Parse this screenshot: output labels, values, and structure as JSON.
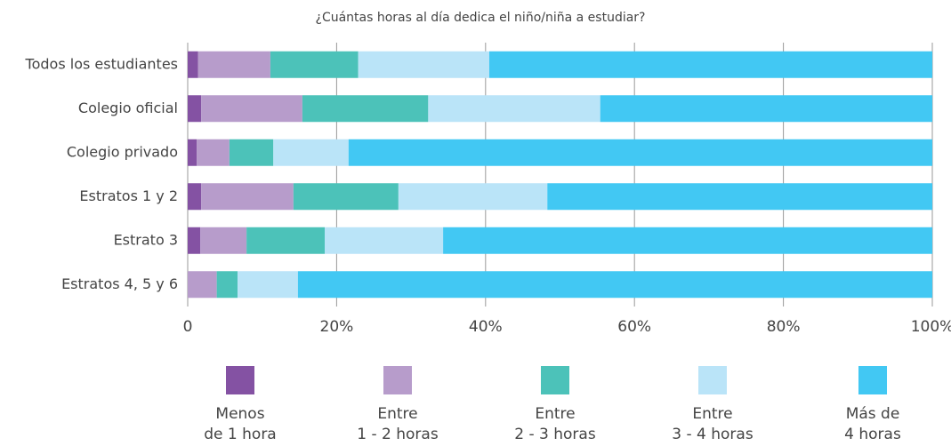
{
  "chart_data": {
    "type": "stacked_barh",
    "title": "¿Cuántas horas al día dedica el niño/niña a estudiar?",
    "categories": [
      "Todos los estudiantes",
      "Colegio oficial",
      "Colegio privado",
      "Estratos 1 y 2",
      "Estrato 3",
      "Estratos 4, 5 y 6"
    ],
    "series": [
      {
        "name": "Menos\nde 1 hora",
        "color": "#8452a3",
        "values": [
          1.4,
          1.8,
          1.2,
          1.8,
          1.7,
          0
        ]
      },
      {
        "name": "Entre\n1 - 2 horas",
        "color": "#b79ccb",
        "values": [
          9.7,
          13.6,
          4.4,
          12.4,
          6.2,
          3.9
        ]
      },
      {
        "name": "Entre\n2 - 3 horas",
        "color": "#4cc2b9",
        "values": [
          11.8,
          16.9,
          5.9,
          14.1,
          10.5,
          2.8
        ]
      },
      {
        "name": "Entre\n3 - 4 horas",
        "color": "#bae4f8",
        "values": [
          17.6,
          23.1,
          10.1,
          20.0,
          15.9,
          8.1
        ]
      },
      {
        "name": "Más de\n4 horas",
        "color": "#42c8f3",
        "values": [
          59.5,
          44.6,
          78.4,
          51.7,
          65.7,
          85.2
        ]
      }
    ],
    "xlim": [
      0,
      100
    ],
    "xticks": [
      0,
      {
        "value": 20,
        "label": "20%"
      },
      {
        "value": 40,
        "label": "40%"
      },
      {
        "value": 60,
        "label": "60%"
      },
      {
        "value": 80,
        "label": "80%"
      },
      {
        "value": 100,
        "label": "100%"
      }
    ],
    "grid": true
  }
}
